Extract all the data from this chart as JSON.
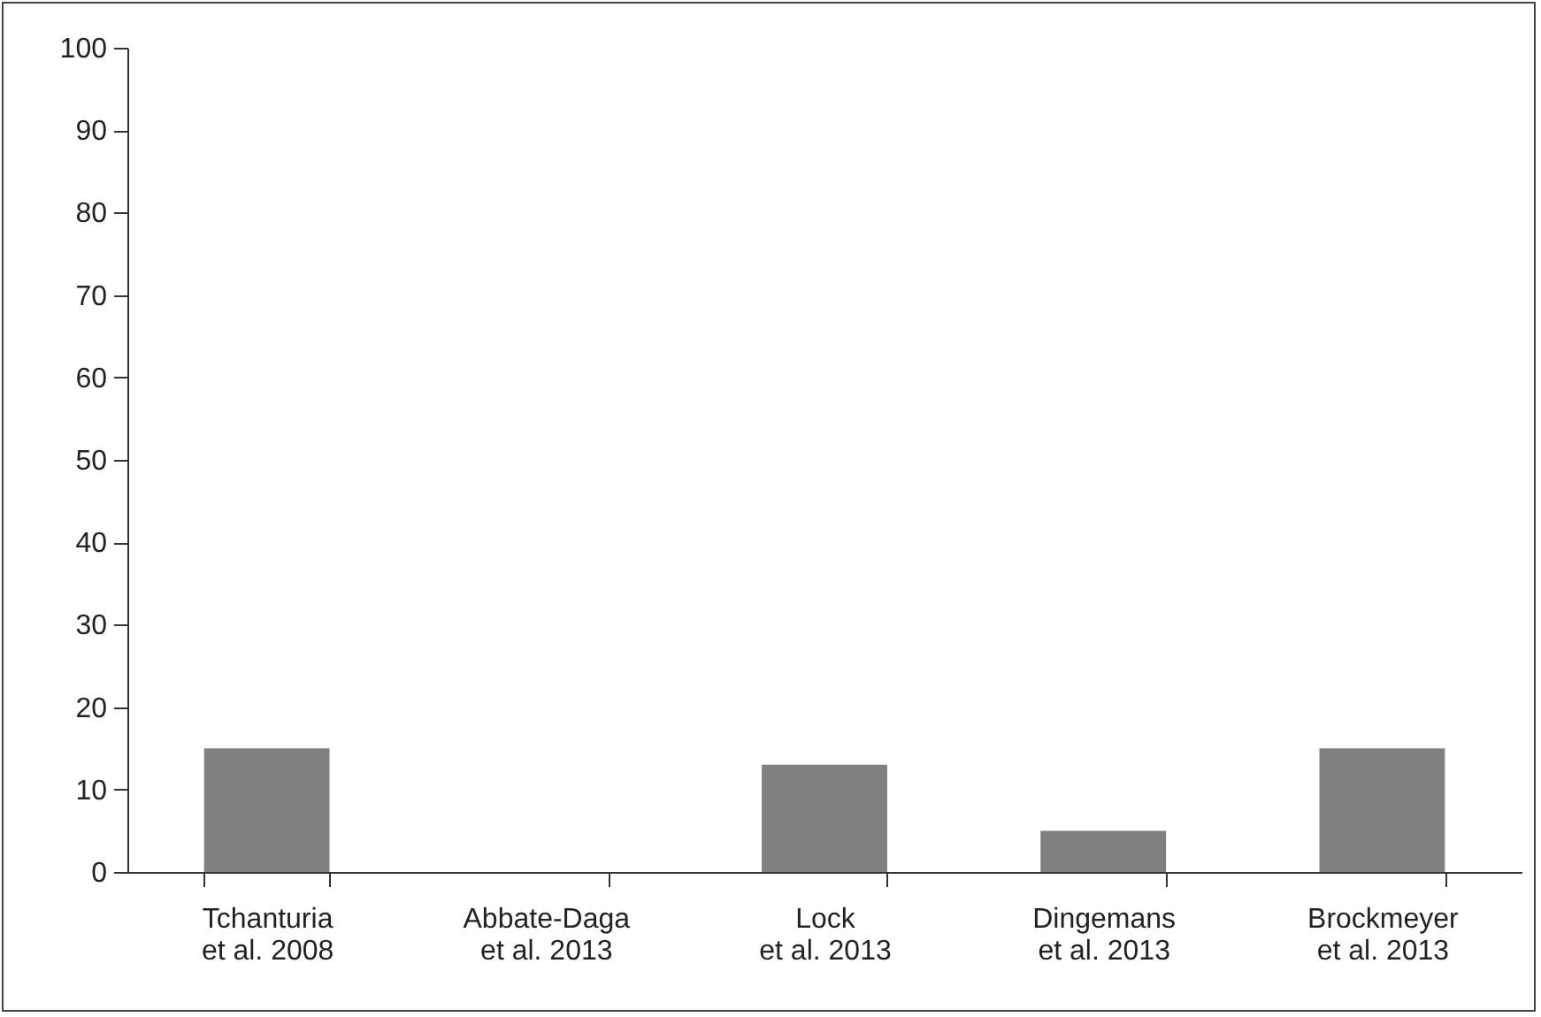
{
  "chart_data": {
    "type": "bar",
    "categories": [
      "Tchanturia\net al. 2008",
      "Abbate-Daga\net al. 2013",
      "Lock\net al. 2013",
      "Dingemans\net al. 2013",
      "Brockmeyer\net al. 2013"
    ],
    "values": [
      15,
      0,
      13,
      5,
      15
    ],
    "color": "#808080",
    "ylim": [
      0,
      100
    ],
    "yticks": [
      0,
      10,
      20,
      30,
      40,
      50,
      60,
      70,
      80,
      90,
      100
    ],
    "grid": false
  }
}
